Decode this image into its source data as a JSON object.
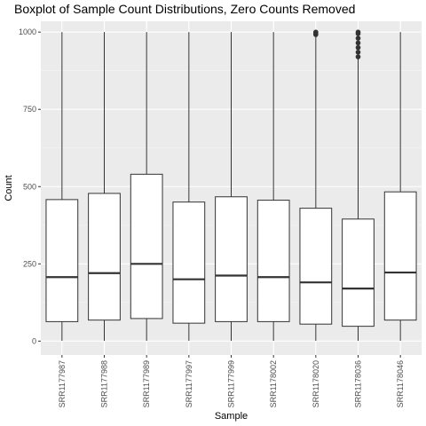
{
  "chart_data": {
    "type": "boxplot",
    "title": "Boxplot of Sample Count Distributions, Zero Counts Removed",
    "xlabel": "Sample",
    "ylabel": "Count",
    "ylim": [
      -45,
      1035
    ],
    "yticks": [
      0,
      250,
      500,
      750,
      1000
    ],
    "grid": true,
    "categories": [
      "SRR1177987",
      "SRR1177988",
      "SRR1177989",
      "SRR1177997",
      "SRR1177999",
      "SRR1178002",
      "SRR1178020",
      "SRR1178036",
      "SRR1178046"
    ],
    "boxes": [
      {
        "min": 1,
        "q1": 63,
        "median": 207,
        "q3": 458,
        "max": 1000,
        "outliers": []
      },
      {
        "min": 1,
        "q1": 68,
        "median": 220,
        "q3": 478,
        "max": 1000,
        "outliers": []
      },
      {
        "min": 1,
        "q1": 73,
        "median": 250,
        "q3": 540,
        "max": 1000,
        "outliers": []
      },
      {
        "min": 1,
        "q1": 58,
        "median": 200,
        "q3": 450,
        "max": 1000,
        "outliers": []
      },
      {
        "min": 1,
        "q1": 63,
        "median": 212,
        "q3": 467,
        "max": 1000,
        "outliers": []
      },
      {
        "min": 1,
        "q1": 63,
        "median": 207,
        "q3": 456,
        "max": 1000,
        "outliers": []
      },
      {
        "min": 1,
        "q1": 55,
        "median": 190,
        "q3": 430,
        "max": 990,
        "outliers": [
          992,
          995,
          998,
          1000
        ]
      },
      {
        "min": 1,
        "q1": 48,
        "median": 170,
        "q3": 395,
        "max": 915,
        "outliers": [
          920,
          935,
          950,
          965,
          980,
          995,
          1000
        ]
      },
      {
        "min": 1,
        "q1": 68,
        "median": 222,
        "q3": 483,
        "max": 1000,
        "outliers": []
      }
    ],
    "colors": {
      "panel": "#ebebeb",
      "grid_major": "#ffffff",
      "grid_minor": "#f5f5f5",
      "box_fill": "#ffffff",
      "box_line": "#333333"
    }
  }
}
